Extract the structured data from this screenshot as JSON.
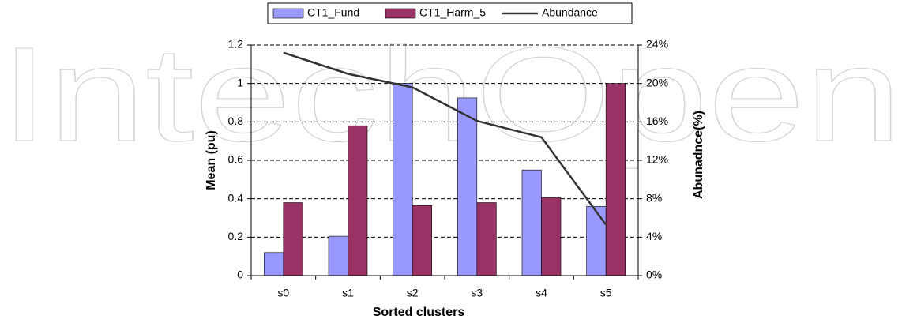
{
  "watermark": "IntechOpen",
  "chart_data": {
    "type": "bar",
    "x_label": "Sorted clusters",
    "y_label": "Mean (pu)",
    "y2_label": "Abunadnce(%)",
    "categories": [
      "s0",
      "s1",
      "s2",
      "s3",
      "s4",
      "s5"
    ],
    "series": [
      {
        "name": "CT1_Fund",
        "color": "#9999ff",
        "type": "bar",
        "values": [
          0.12,
          0.205,
          1.0,
          0.925,
          0.55,
          0.36
        ]
      },
      {
        "name": "CT1_Harm_5",
        "color": "#993366",
        "type": "bar",
        "values": [
          0.38,
          0.78,
          0.365,
          0.38,
          0.405,
          1.0
        ]
      },
      {
        "name": "Abundance",
        "color": "#333333",
        "type": "line",
        "axis": "y2",
        "values": [
          23.2,
          21.0,
          19.6,
          16.1,
          14.4,
          5.3
        ]
      }
    ],
    "ylim": [
      0,
      1.2
    ],
    "yticks": [
      0,
      0.2,
      0.4,
      0.6,
      0.8,
      1,
      1.2
    ],
    "y2lim": [
      0,
      24
    ],
    "y2ticks": [
      {
        "value": 0,
        "label": "0%"
      },
      {
        "value": 4,
        "label": "4%"
      },
      {
        "value": 8,
        "label": "8%"
      },
      {
        "value": 12,
        "label": "12%"
      },
      {
        "value": 16,
        "label": "16%"
      },
      {
        "value": 20,
        "label": "20%"
      },
      {
        "value": 24,
        "label": "24%"
      }
    ],
    "grid": true,
    "legend": "top"
  }
}
